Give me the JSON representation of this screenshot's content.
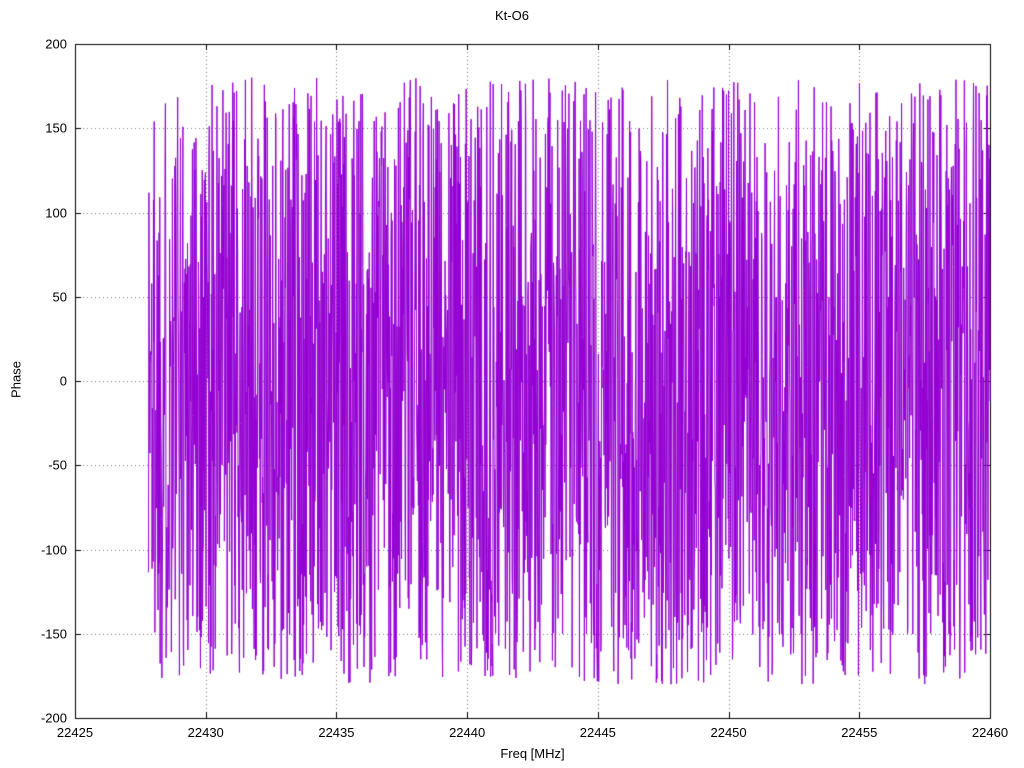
{
  "page": {
    "background": "#ffffff",
    "text_color": "#000000",
    "grid_color": "#808080",
    "border_color": "#000000"
  },
  "chart_data": {
    "type": "line",
    "title": "Kt-O6",
    "xlabel": "Freq [MHz]",
    "ylabel": "Phase",
    "xlim": [
      22425,
      22460
    ],
    "ylim": [
      -200,
      200
    ],
    "x_ticks": [
      22425,
      22430,
      22435,
      22440,
      22445,
      22450,
      22455,
      22460
    ],
    "y_ticks": [
      -200,
      -150,
      -100,
      -50,
      0,
      50,
      100,
      150,
      200
    ],
    "grid": "dotted",
    "legend": "none",
    "series": [
      {
        "name": "phase",
        "color": "#9400d3",
        "line_width": 1,
        "x_start": 22427.8,
        "x_end": 22460.0,
        "n_points": 2400,
        "model": "wrapped-phase-uniform-random-noise",
        "value_range": [
          -180,
          180
        ],
        "seed": 1337
      }
    ]
  }
}
